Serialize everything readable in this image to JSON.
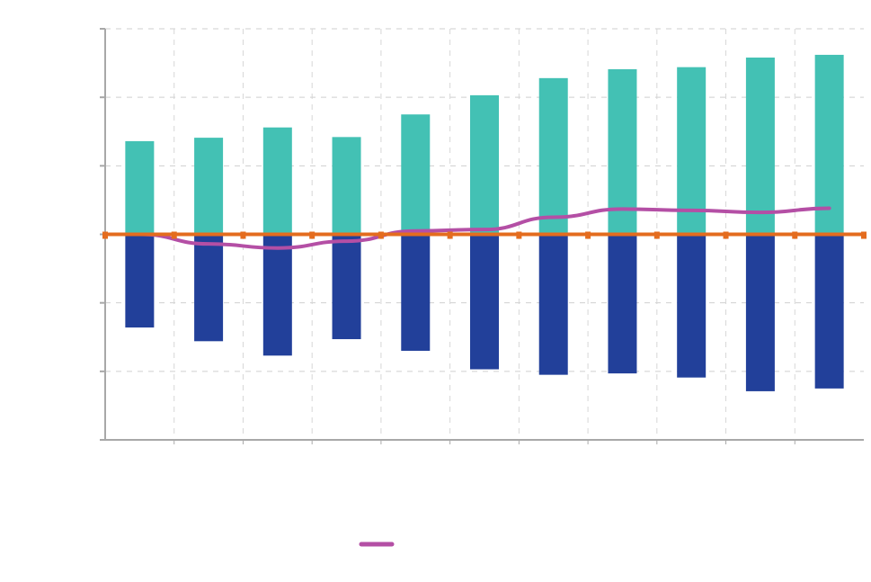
{
  "chart_data": {
    "type": "bar",
    "categories": [
      "",
      "",
      "",
      "",
      "",
      "",
      "",
      "",
      "",
      "",
      ""
    ],
    "ylim": [
      -3,
      3
    ],
    "grid": true,
    "series": [
      {
        "kind": "bar",
        "color": "#43c1b4",
        "values": [
          1.36,
          1.41,
          1.56,
          1.42,
          1.75,
          2.03,
          2.28,
          2.41,
          2.44,
          2.58,
          2.62
        ]
      },
      {
        "kind": "bar",
        "color": "#22409a",
        "values": [
          -1.36,
          -1.56,
          -1.77,
          -1.53,
          -1.7,
          -1.97,
          -2.05,
          -2.03,
          -2.09,
          -2.29,
          -2.25
        ]
      },
      {
        "kind": "line",
        "color": "#b44fa5",
        "values": [
          0.0,
          -0.14,
          -0.2,
          -0.1,
          0.05,
          0.07,
          0.25,
          0.37,
          0.35,
          0.32,
          0.38
        ]
      },
      {
        "kind": "line",
        "color": "#e46c1e",
        "markers": true,
        "values": [
          0,
          0,
          0,
          0,
          0,
          0,
          0,
          0,
          0,
          0,
          0
        ]
      }
    ],
    "legend": {
      "position": "bottom",
      "entries": [
        {
          "series": 2,
          "label": ""
        }
      ]
    }
  }
}
